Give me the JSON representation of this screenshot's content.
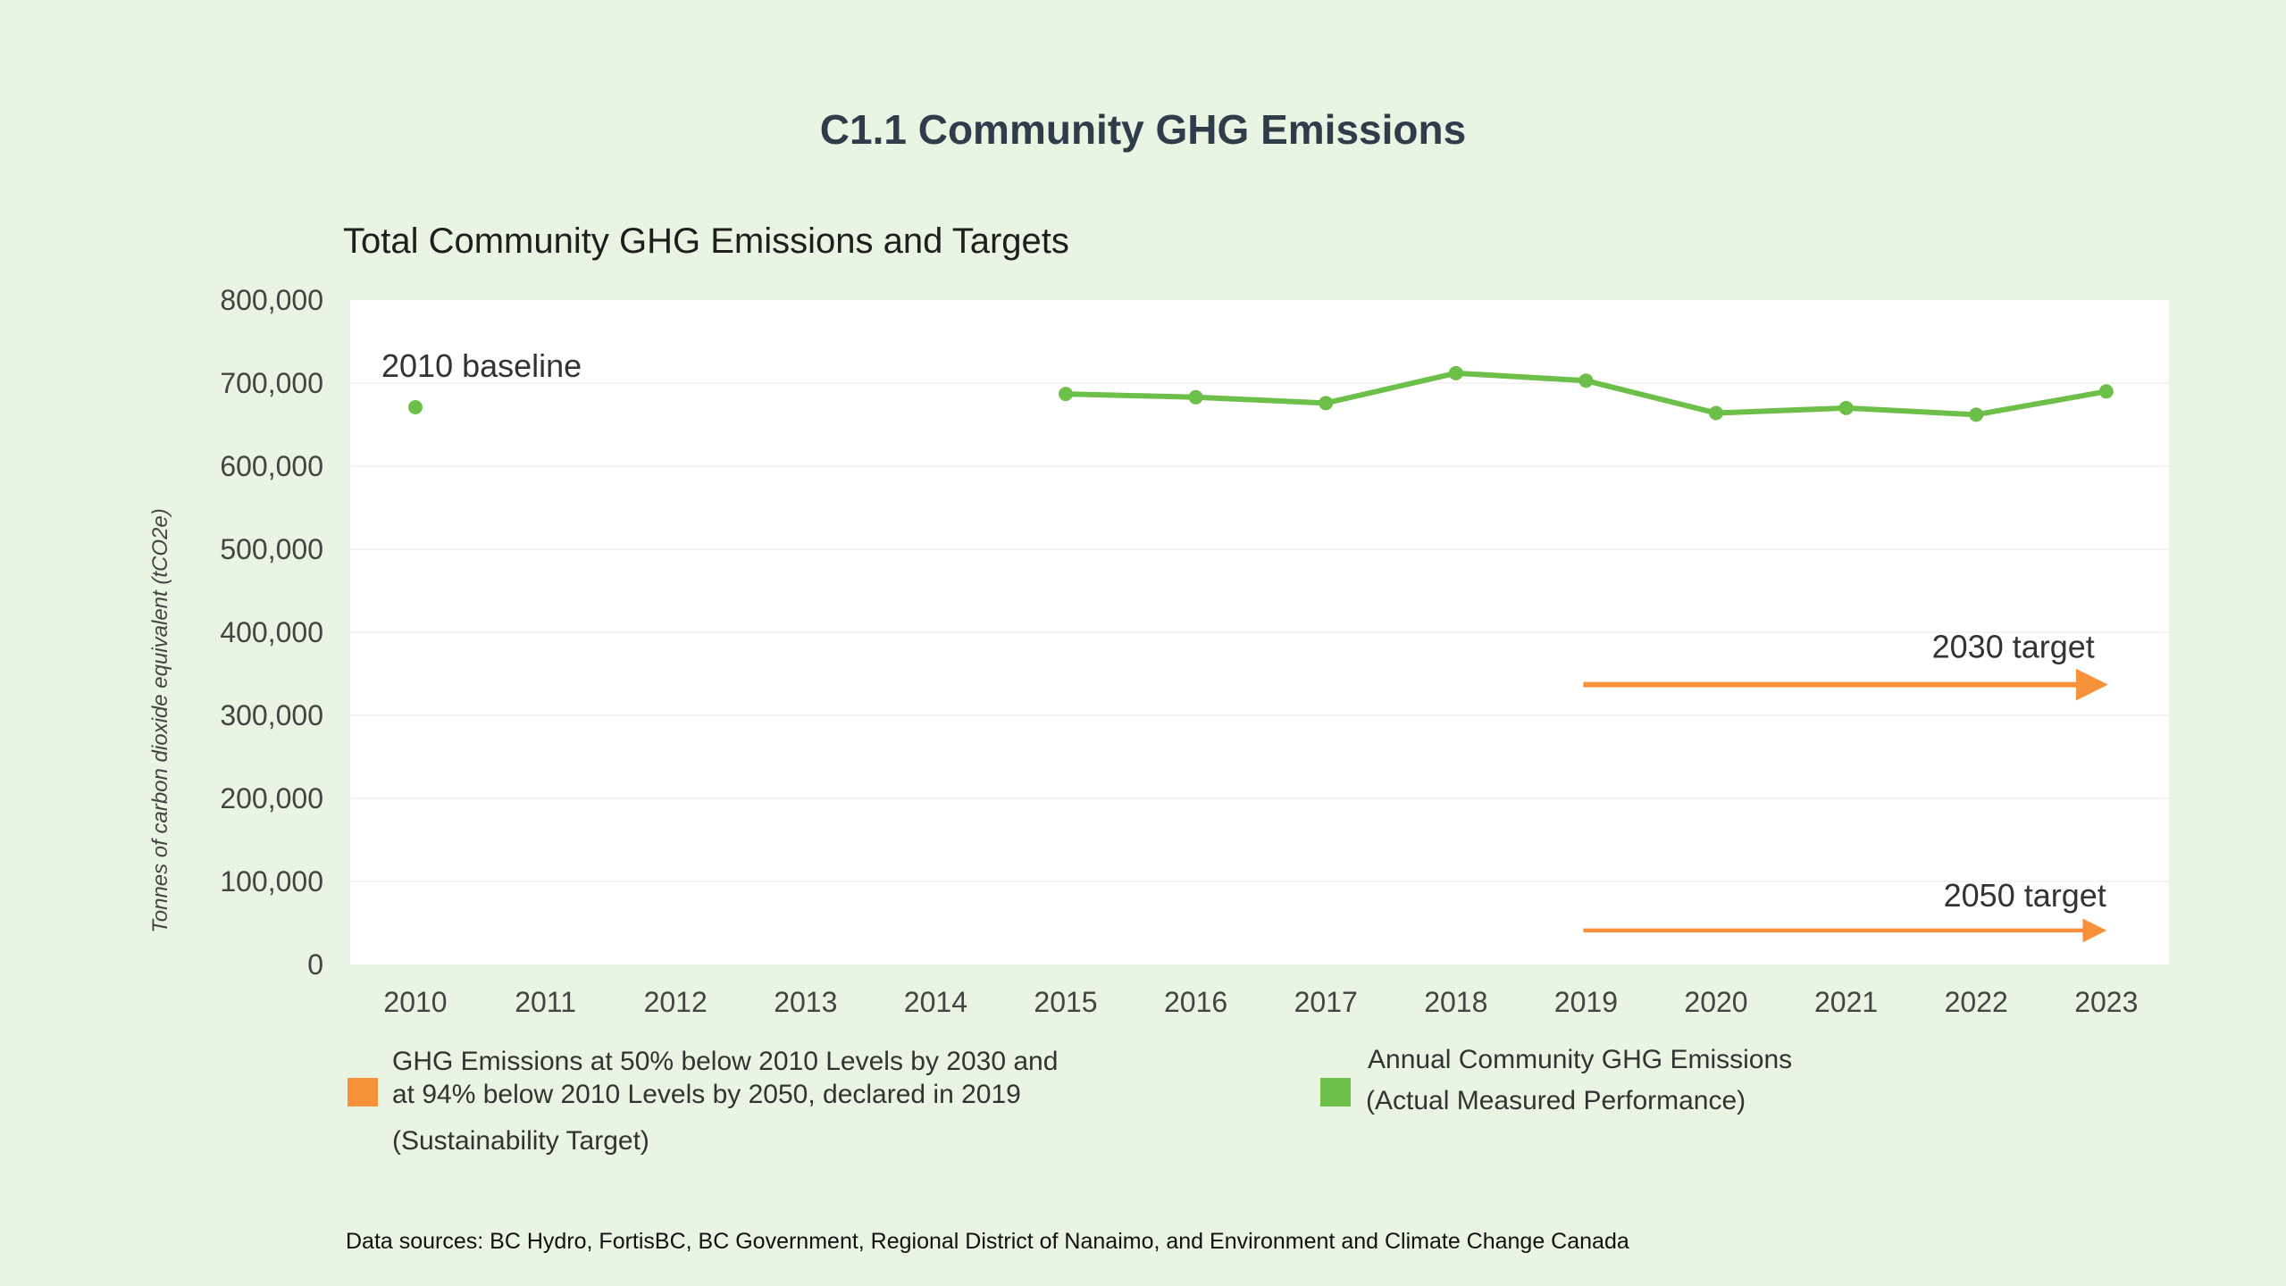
{
  "page": {
    "title": "C1.1 Community GHG Emissions",
    "footnote": "Data sources: BC Hydro, FortisBC, BC Government, Regional District of Nanaimo, and Environment and Climate Change Canada"
  },
  "colors": {
    "background": "#e9f4e2",
    "plot_background": "#ffffff",
    "actual": "#6cc04a",
    "target": "#f7923a",
    "title_text": "#2f3d4b"
  },
  "legend": {
    "target": {
      "line1": "GHG Emissions at 50% below 2010 Levels by 2030 and",
      "line2": "at 94% below 2010 Levels by 2050, declared in 2019",
      "line3": "(Sustainability Target)"
    },
    "actual": {
      "line1": "Annual Community GHG Emissions",
      "line2": "(Actual Measured Performance)"
    }
  },
  "chart_data": {
    "type": "line",
    "title": "Total Community GHG Emissions and Targets",
    "ylabel": "Tonnes of carbon dioxide equivalent (tCO2e)",
    "xlabel": "",
    "ylim": [
      0,
      800000
    ],
    "yticks": [
      "0",
      "100,000",
      "200,000",
      "300,000",
      "400,000",
      "500,000",
      "600,000",
      "700,000",
      "800,000"
    ],
    "categories": [
      "2010",
      "2011",
      "2012",
      "2013",
      "2014",
      "2015",
      "2016",
      "2017",
      "2018",
      "2019",
      "2020",
      "2021",
      "2022",
      "2023"
    ],
    "grid": true,
    "series": [
      {
        "name": "Annual Community GHG Emissions (Actual Measured Performance)",
        "color": "#6cc04a",
        "values": [
          671000,
          null,
          null,
          null,
          null,
          687000,
          683000,
          676000,
          712000,
          703000,
          664000,
          670000,
          662000,
          690000
        ]
      }
    ],
    "targets": [
      {
        "label": "2030 target",
        "value": 337000,
        "from": "2019",
        "to": "2023",
        "color": "#f7923a"
      },
      {
        "label": "2050 target",
        "value": 41000,
        "from": "2019",
        "to": "2023",
        "color": "#f7923a"
      }
    ],
    "annotations": [
      {
        "text": "2010 baseline",
        "category": "2010"
      }
    ]
  }
}
